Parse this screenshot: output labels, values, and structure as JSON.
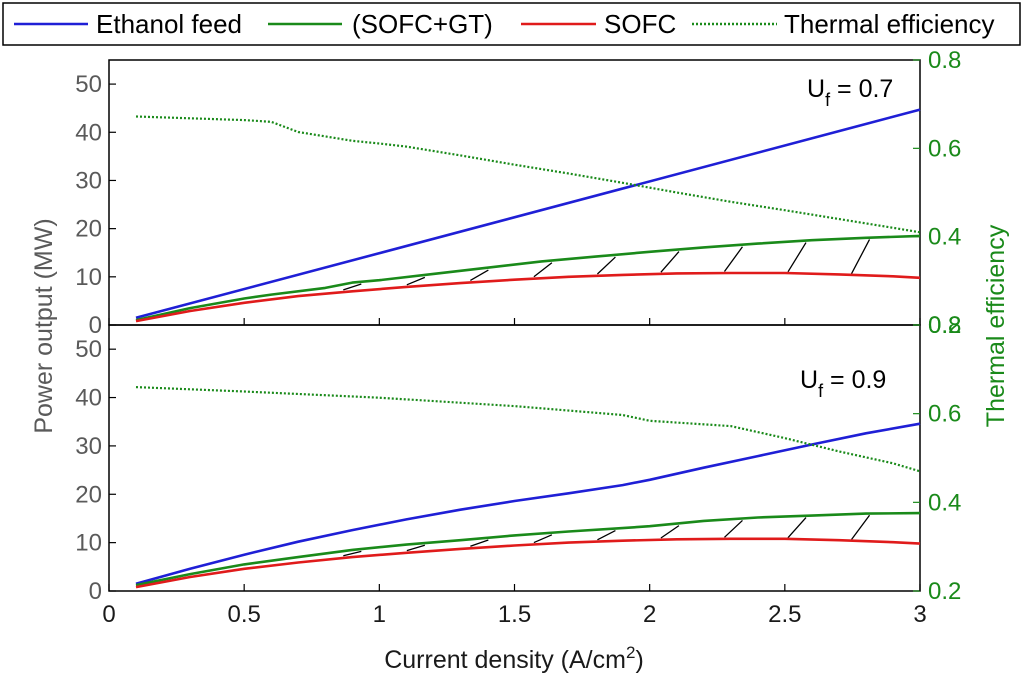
{
  "legend": [
    {
      "label": "Ethanol feed",
      "color": "#1f1fd6",
      "style": "solid"
    },
    {
      "label": "(SOFC+GT)",
      "color": "#1a8a1a",
      "style": "solid"
    },
    {
      "label": "SOFC",
      "color": "#e01b1b",
      "style": "solid"
    },
    {
      "label": "Thermal efficiency",
      "color": "#1a8a1a",
      "style": "dotted"
    }
  ],
  "x_axis": {
    "label_main": "Current density (A/cm",
    "label_sup": "2",
    "label_tail": ")",
    "ticks": [
      "0",
      "0.5",
      "1",
      "1.5",
      "2",
      "2.5",
      "3"
    ],
    "range": [
      0,
      3
    ]
  },
  "left_axis": {
    "label": "Power output (MW)",
    "ticks": [
      "0",
      "10",
      "20",
      "30",
      "40",
      "50"
    ],
    "range": [
      0,
      55
    ]
  },
  "right_axis": {
    "label": "Thermal efficiency",
    "ticks": [
      "0.2",
      "0.4",
      "0.6",
      "0.8"
    ],
    "range": [
      0.2,
      0.8
    ]
  },
  "chart_data": [
    {
      "type": "line",
      "annotation": {
        "main": "U",
        "sub": "f",
        "tail": " = 0.7"
      },
      "x_range": [
        0,
        3
      ],
      "y_left_range": [
        0,
        55
      ],
      "y_right_range": [
        0.2,
        0.8
      ],
      "grid": false,
      "legend_position": "top",
      "series": [
        {
          "name": "Ethanol feed",
          "axis": "left",
          "color": "#1f1fd6",
          "x": [
            0.1,
            3.0
          ],
          "y": [
            1.5,
            44.7
          ]
        },
        {
          "name": "(SOFC+GT)",
          "axis": "left",
          "color": "#1a8a1a",
          "x": [
            0.1,
            0.3,
            0.5,
            0.6,
            0.8,
            0.9,
            1.0,
            1.2,
            1.4,
            1.6,
            1.8,
            2.0,
            2.2,
            2.4,
            2.6,
            2.8,
            3.0
          ],
          "y": [
            1.0,
            3.5,
            5.5,
            6.3,
            7.7,
            8.8,
            9.3,
            10.6,
            11.9,
            13.2,
            14.2,
            15.2,
            16.1,
            16.9,
            17.6,
            18.1,
            18.5
          ]
        },
        {
          "name": "SOFC",
          "axis": "left",
          "color": "#e01b1b",
          "x": [
            0.1,
            0.3,
            0.5,
            0.7,
            0.9,
            1.1,
            1.3,
            1.5,
            1.7,
            1.9,
            2.1,
            2.3,
            2.5,
            2.7,
            2.9,
            3.0
          ],
          "y": [
            0.8,
            2.9,
            4.6,
            6.0,
            7.0,
            7.9,
            8.7,
            9.4,
            10.0,
            10.4,
            10.7,
            10.8,
            10.8,
            10.5,
            10.1,
            9.8
          ]
        },
        {
          "name": "Thermal efficiency",
          "axis": "right",
          "color": "#1a8a1a",
          "x": [
            0.1,
            0.3,
            0.5,
            0.6,
            0.7,
            0.9,
            1.0,
            1.1,
            1.3,
            1.5,
            1.7,
            1.9,
            2.1,
            2.3,
            2.5,
            2.7,
            2.9,
            3.0
          ],
          "y": [
            0.672,
            0.668,
            0.664,
            0.66,
            0.637,
            0.617,
            0.611,
            0.604,
            0.584,
            0.563,
            0.543,
            0.522,
            0.5,
            0.479,
            0.46,
            0.44,
            0.42,
            0.41
          ]
        }
      ]
    },
    {
      "type": "line",
      "annotation": {
        "main": "U",
        "sub": "f",
        "tail": " = 0.9"
      },
      "x_range": [
        0,
        3
      ],
      "y_left_range": [
        0,
        55
      ],
      "y_right_range": [
        0.2,
        0.8
      ],
      "grid": false,
      "series": [
        {
          "name": "Ethanol feed",
          "axis": "left",
          "color": "#1f1fd6",
          "x": [
            0.1,
            0.3,
            0.5,
            0.7,
            0.9,
            1.1,
            1.3,
            1.5,
            1.7,
            1.9,
            2.0,
            2.2,
            2.4,
            2.6,
            2.8,
            3.0
          ],
          "y": [
            1.5,
            4.6,
            7.5,
            10.2,
            12.6,
            14.8,
            16.8,
            18.6,
            20.2,
            21.9,
            23.0,
            25.5,
            27.9,
            30.3,
            32.6,
            34.6
          ]
        },
        {
          "name": "(SOFC+GT)",
          "axis": "left",
          "color": "#1a8a1a",
          "x": [
            0.1,
            0.3,
            0.5,
            0.7,
            0.9,
            1.1,
            1.3,
            1.5,
            1.7,
            1.9,
            2.0,
            2.2,
            2.4,
            2.6,
            2.8,
            3.0
          ],
          "y": [
            1.2,
            3.5,
            5.5,
            7.0,
            8.5,
            9.6,
            10.5,
            11.5,
            12.3,
            13.0,
            13.4,
            14.5,
            15.2,
            15.6,
            16.0,
            16.1
          ]
        },
        {
          "name": "SOFC",
          "axis": "left",
          "color": "#e01b1b",
          "x": [
            0.1,
            0.3,
            0.5,
            0.7,
            0.9,
            1.1,
            1.3,
            1.5,
            1.7,
            1.9,
            2.1,
            2.3,
            2.5,
            2.7,
            2.9,
            3.0
          ],
          "y": [
            0.8,
            2.9,
            4.6,
            5.9,
            7.0,
            7.9,
            8.7,
            9.4,
            10.0,
            10.4,
            10.7,
            10.8,
            10.8,
            10.5,
            10.1,
            9.8
          ]
        },
        {
          "name": "Thermal efficiency",
          "axis": "right",
          "color": "#1a8a1a",
          "x": [
            0.1,
            0.5,
            1.0,
            1.5,
            1.9,
            2.0,
            2.3,
            2.5,
            2.7,
            2.9,
            3.0
          ],
          "y": [
            0.66,
            0.65,
            0.636,
            0.617,
            0.597,
            0.584,
            0.572,
            0.545,
            0.515,
            0.488,
            0.47
          ]
        }
      ]
    }
  ]
}
